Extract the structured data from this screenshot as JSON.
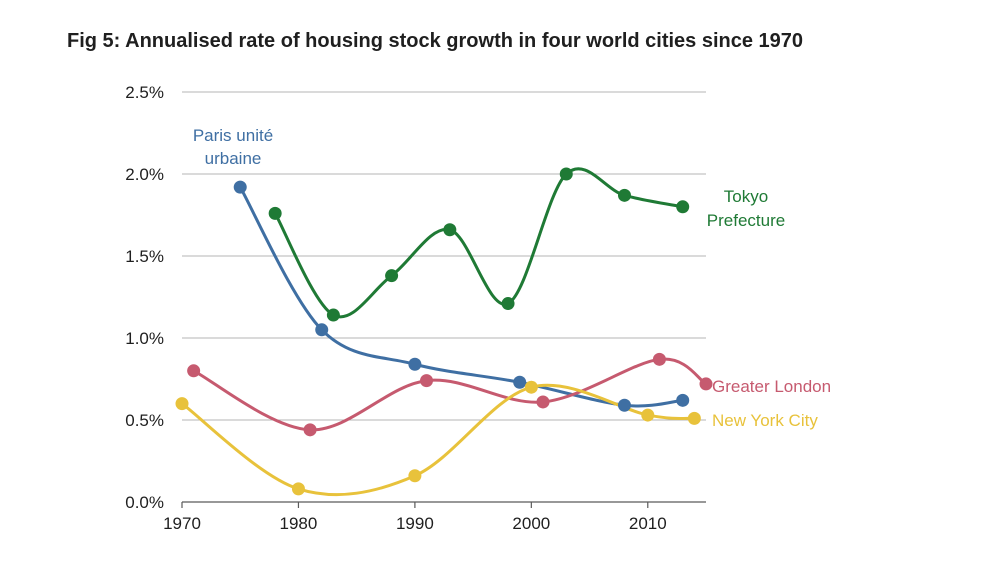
{
  "chart_data": {
    "type": "line",
    "title": "Fig 5: Annualised rate of housing stock growth in four world cities since 1970",
    "xlabel": "",
    "ylabel": "",
    "xlim": [
      1970,
      2015
    ],
    "ylim": [
      0,
      2.5
    ],
    "grid": "horizontal",
    "x_ticks": [
      "1970",
      "1980",
      "1990",
      "2000",
      "2010"
    ],
    "x_tick_values": [
      1970,
      1980,
      1990,
      2000,
      2010
    ],
    "y_ticks": [
      "0.0%",
      "0.5%",
      "1.0%",
      "1.5%",
      "2.0%",
      "2.5%"
    ],
    "y_tick_values": [
      0,
      0.5,
      1.0,
      1.5,
      2.0,
      2.5
    ],
    "series": [
      {
        "name": "Paris unité urbaine",
        "label_lines": [
          "Paris unité",
          "urbaine"
        ],
        "color": "#3f6fa3",
        "x": [
          1975,
          1982,
          1990,
          1999,
          2008,
          2013
        ],
        "y": [
          1.92,
          1.05,
          0.84,
          0.73,
          0.59,
          0.62
        ]
      },
      {
        "name": "Tokyo Prefecture",
        "label_lines": [
          "Tokyo",
          "Prefecture"
        ],
        "color": "#1f7a35",
        "x": [
          1978,
          1983,
          1988,
          1993,
          1998,
          2003,
          2008,
          2013
        ],
        "y": [
          1.76,
          1.14,
          1.38,
          1.66,
          1.21,
          2.0,
          1.87,
          1.8
        ]
      },
      {
        "name": "Greater London",
        "label_lines": [
          "Greater London"
        ],
        "color": "#c65a6f",
        "x": [
          1971,
          1981,
          1991,
          2001,
          2011,
          2015
        ],
        "y": [
          0.8,
          0.44,
          0.74,
          0.61,
          0.87,
          0.72
        ]
      },
      {
        "name": "New York City",
        "label_lines": [
          "New York City"
        ],
        "color": "#e8c23b",
        "x": [
          1970,
          1980,
          1990,
          2000,
          2010,
          2014
        ],
        "y": [
          0.6,
          0.08,
          0.16,
          0.7,
          0.53,
          0.51
        ]
      }
    ]
  }
}
